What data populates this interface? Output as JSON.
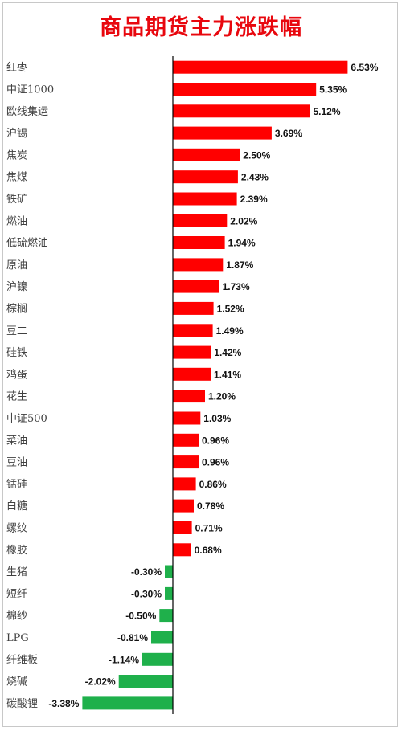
{
  "colors": {
    "positive": "#ff0000",
    "negative": "#1fb04b",
    "title": "#e8070e",
    "axis": "#000000"
  },
  "chart_data": {
    "type": "bar",
    "orientation": "horizontal",
    "title": "商品期货主力涨跌幅",
    "xlabel": "",
    "ylabel": "",
    "grid": false,
    "legend": "none",
    "value_format": "percent",
    "xlim": [
      -4.2,
      8.1
    ],
    "categories": [
      "红枣",
      "中证1000",
      "欧线集运",
      "沪锡",
      "焦炭",
      "焦煤",
      "铁矿",
      "燃油",
      "低硫燃油",
      "原油",
      "沪镍",
      "棕榈",
      "豆二",
      "硅铁",
      "鸡蛋",
      "花生",
      "中证500",
      "菜油",
      "豆油",
      "锰硅",
      "白糖",
      "螺纹",
      "橡胶",
      "生猪",
      "短纤",
      "棉纱",
      "LPG",
      "纤维板",
      "烧碱",
      "碳酸锂"
    ],
    "values": [
      6.53,
      5.35,
      5.12,
      3.69,
      2.5,
      2.43,
      2.39,
      2.02,
      1.94,
      1.87,
      1.73,
      1.52,
      1.49,
      1.42,
      1.41,
      1.2,
      1.03,
      0.96,
      0.96,
      0.86,
      0.78,
      0.71,
      0.68,
      -0.3,
      -0.3,
      -0.5,
      -0.81,
      -1.14,
      -2.02,
      -3.38
    ],
    "labels": [
      "6.53%",
      "5.35%",
      "5.12%",
      "3.69%",
      "2.50%",
      "2.43%",
      "2.39%",
      "2.02%",
      "1.94%",
      "1.87%",
      "1.73%",
      "1.52%",
      "1.49%",
      "1.42%",
      "1.41%",
      "1.20%",
      "1.03%",
      "0.96%",
      "0.96%",
      "0.86%",
      "0.78%",
      "0.71%",
      "0.68%",
      "-0.30%",
      "-0.30%",
      "-0.50%",
      "-0.81%",
      "-1.14%",
      "-2.02%",
      "-3.38%"
    ]
  }
}
